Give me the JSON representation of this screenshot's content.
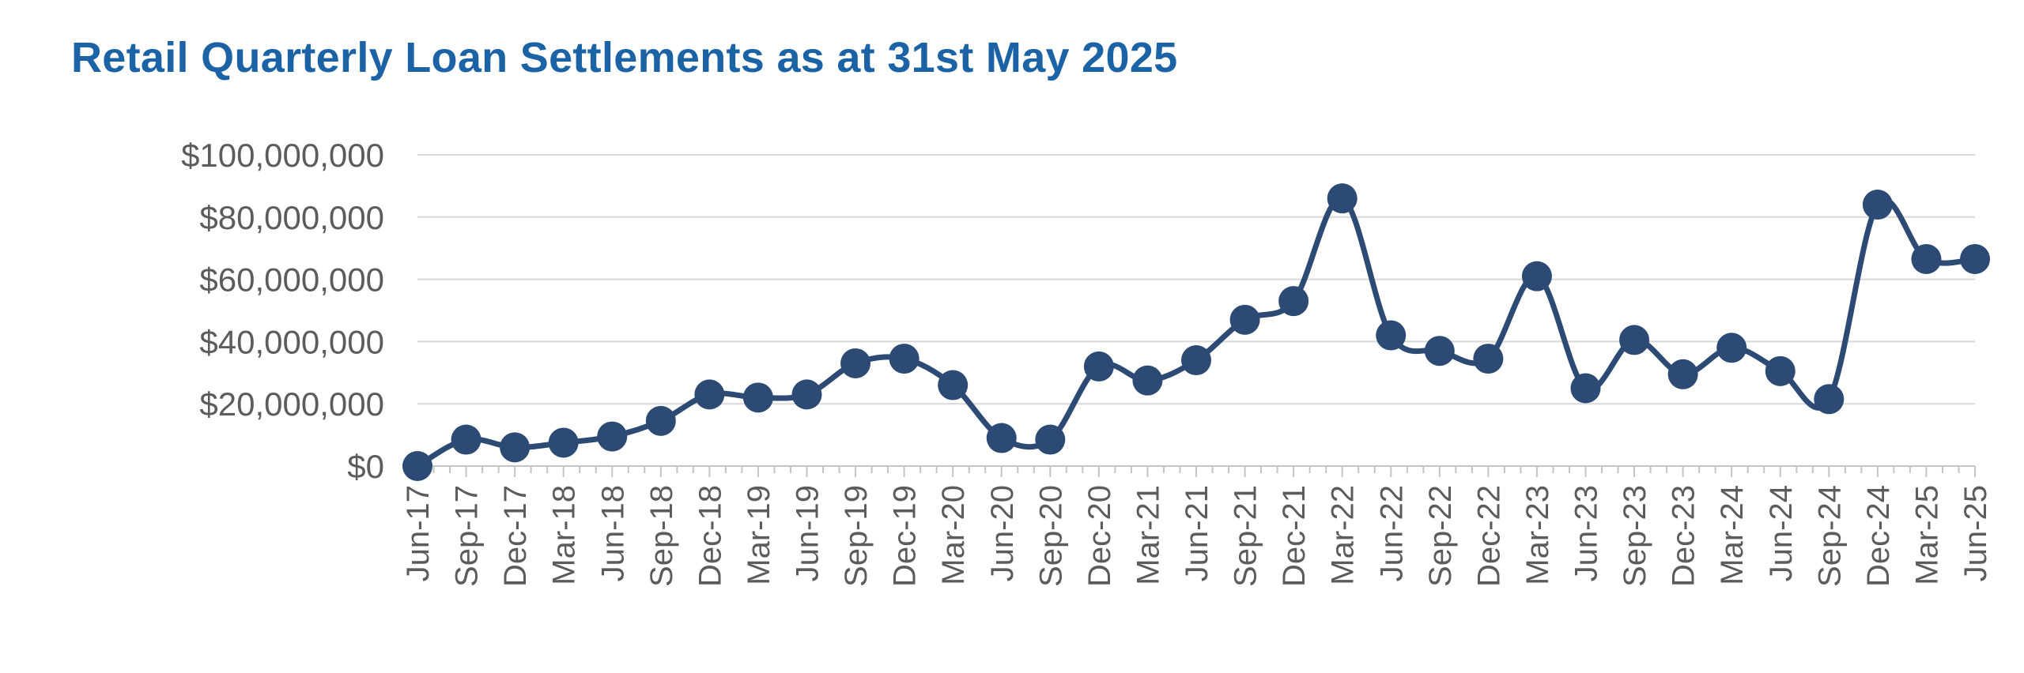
{
  "chart_data": {
    "type": "line",
    "title": "Retail Quarterly Loan Settlements as at 31st May 2025",
    "xlabel": "",
    "ylabel": "",
    "ylim": [
      0,
      100000000
    ],
    "yticks": [
      0,
      20000000,
      40000000,
      60000000,
      80000000,
      100000000
    ],
    "ytick_labels": [
      "$0",
      "$20,000,000",
      "$40,000,000",
      "$60,000,000",
      "$80,000,000",
      "$100,000,000"
    ],
    "grid": "horizontal",
    "legend": "none",
    "line_color": "#2c4a73",
    "title_color": "#1c63a6",
    "categories": [
      "Jun-17",
      "Sep-17",
      "Dec-17",
      "Mar-18",
      "Jun-18",
      "Sep-18",
      "Dec-18",
      "Mar-19",
      "Jun-19",
      "Sep-19",
      "Dec-19",
      "Mar-20",
      "Jun-20",
      "Sep-20",
      "Dec-20",
      "Mar-21",
      "Jun-21",
      "Sep-21",
      "Dec-21",
      "Mar-22",
      "Jun-22",
      "Sep-22",
      "Dec-22",
      "Mar-23",
      "Jun-23",
      "Sep-23",
      "Dec-23",
      "Mar-24",
      "Jun-24",
      "Sep-24",
      "Dec-24",
      "Mar-25",
      "Jun-25"
    ],
    "series": [
      {
        "values": [
          0,
          8500000,
          6000000,
          7500000,
          9500000,
          14500000,
          23000000,
          22000000,
          23000000,
          33000000,
          34500000,
          26000000,
          9000000,
          8500000,
          32000000,
          27500000,
          34000000,
          47000000,
          53000000,
          86000000,
          42000000,
          37000000,
          34500000,
          61000000,
          25000000,
          40500000,
          29500000,
          38000000,
          30500000,
          21500000,
          84000000,
          66500000,
          66500000
        ]
      }
    ]
  }
}
